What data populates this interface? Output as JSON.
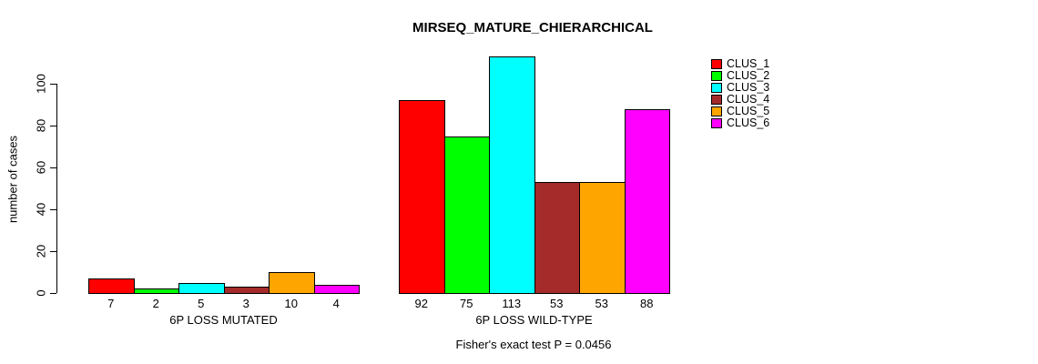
{
  "chart_data": {
    "type": "bar",
    "title": "MIRSEQ_MATURE_CHIERARCHICAL",
    "xlabel": "",
    "ylabel": "number of cases",
    "ylim": [
      0,
      116
    ],
    "yticks": [
      0,
      20,
      40,
      60,
      80,
      100
    ],
    "grid": false,
    "legend_position": "top-right",
    "legend": [
      {
        "label": "CLUS_1",
        "color": "#FF0000"
      },
      {
        "label": "CLUS_2",
        "color": "#00FF00"
      },
      {
        "label": "CLUS_3",
        "color": "#00FFFF"
      },
      {
        "label": "CLUS_4",
        "color": "#A52A2A"
      },
      {
        "label": "CLUS_5",
        "color": "#FFA500"
      },
      {
        "label": "CLUS_6",
        "color": "#FF00FF"
      }
    ],
    "groups": [
      {
        "label": "6P LOSS MUTATED",
        "categories": [
          "CLUS_1",
          "CLUS_2",
          "CLUS_3",
          "CLUS_4",
          "CLUS_5",
          "CLUS_6"
        ],
        "values": [
          7,
          2,
          5,
          3,
          10,
          4
        ],
        "bar_labels": [
          "7",
          "2",
          "5",
          "3",
          "10",
          "4"
        ]
      },
      {
        "label": "6P LOSS WILD-TYPE",
        "categories": [
          "CLUS_1",
          "CLUS_2",
          "CLUS_3",
          "CLUS_4",
          "CLUS_5",
          "CLUS_6"
        ],
        "values": [
          92,
          75,
          113,
          53,
          53,
          88
        ],
        "bar_labels": [
          "92",
          "75",
          "113",
          "53",
          "53",
          "88"
        ]
      }
    ],
    "annotation": "Fisher's exact test P = 0.0456"
  }
}
